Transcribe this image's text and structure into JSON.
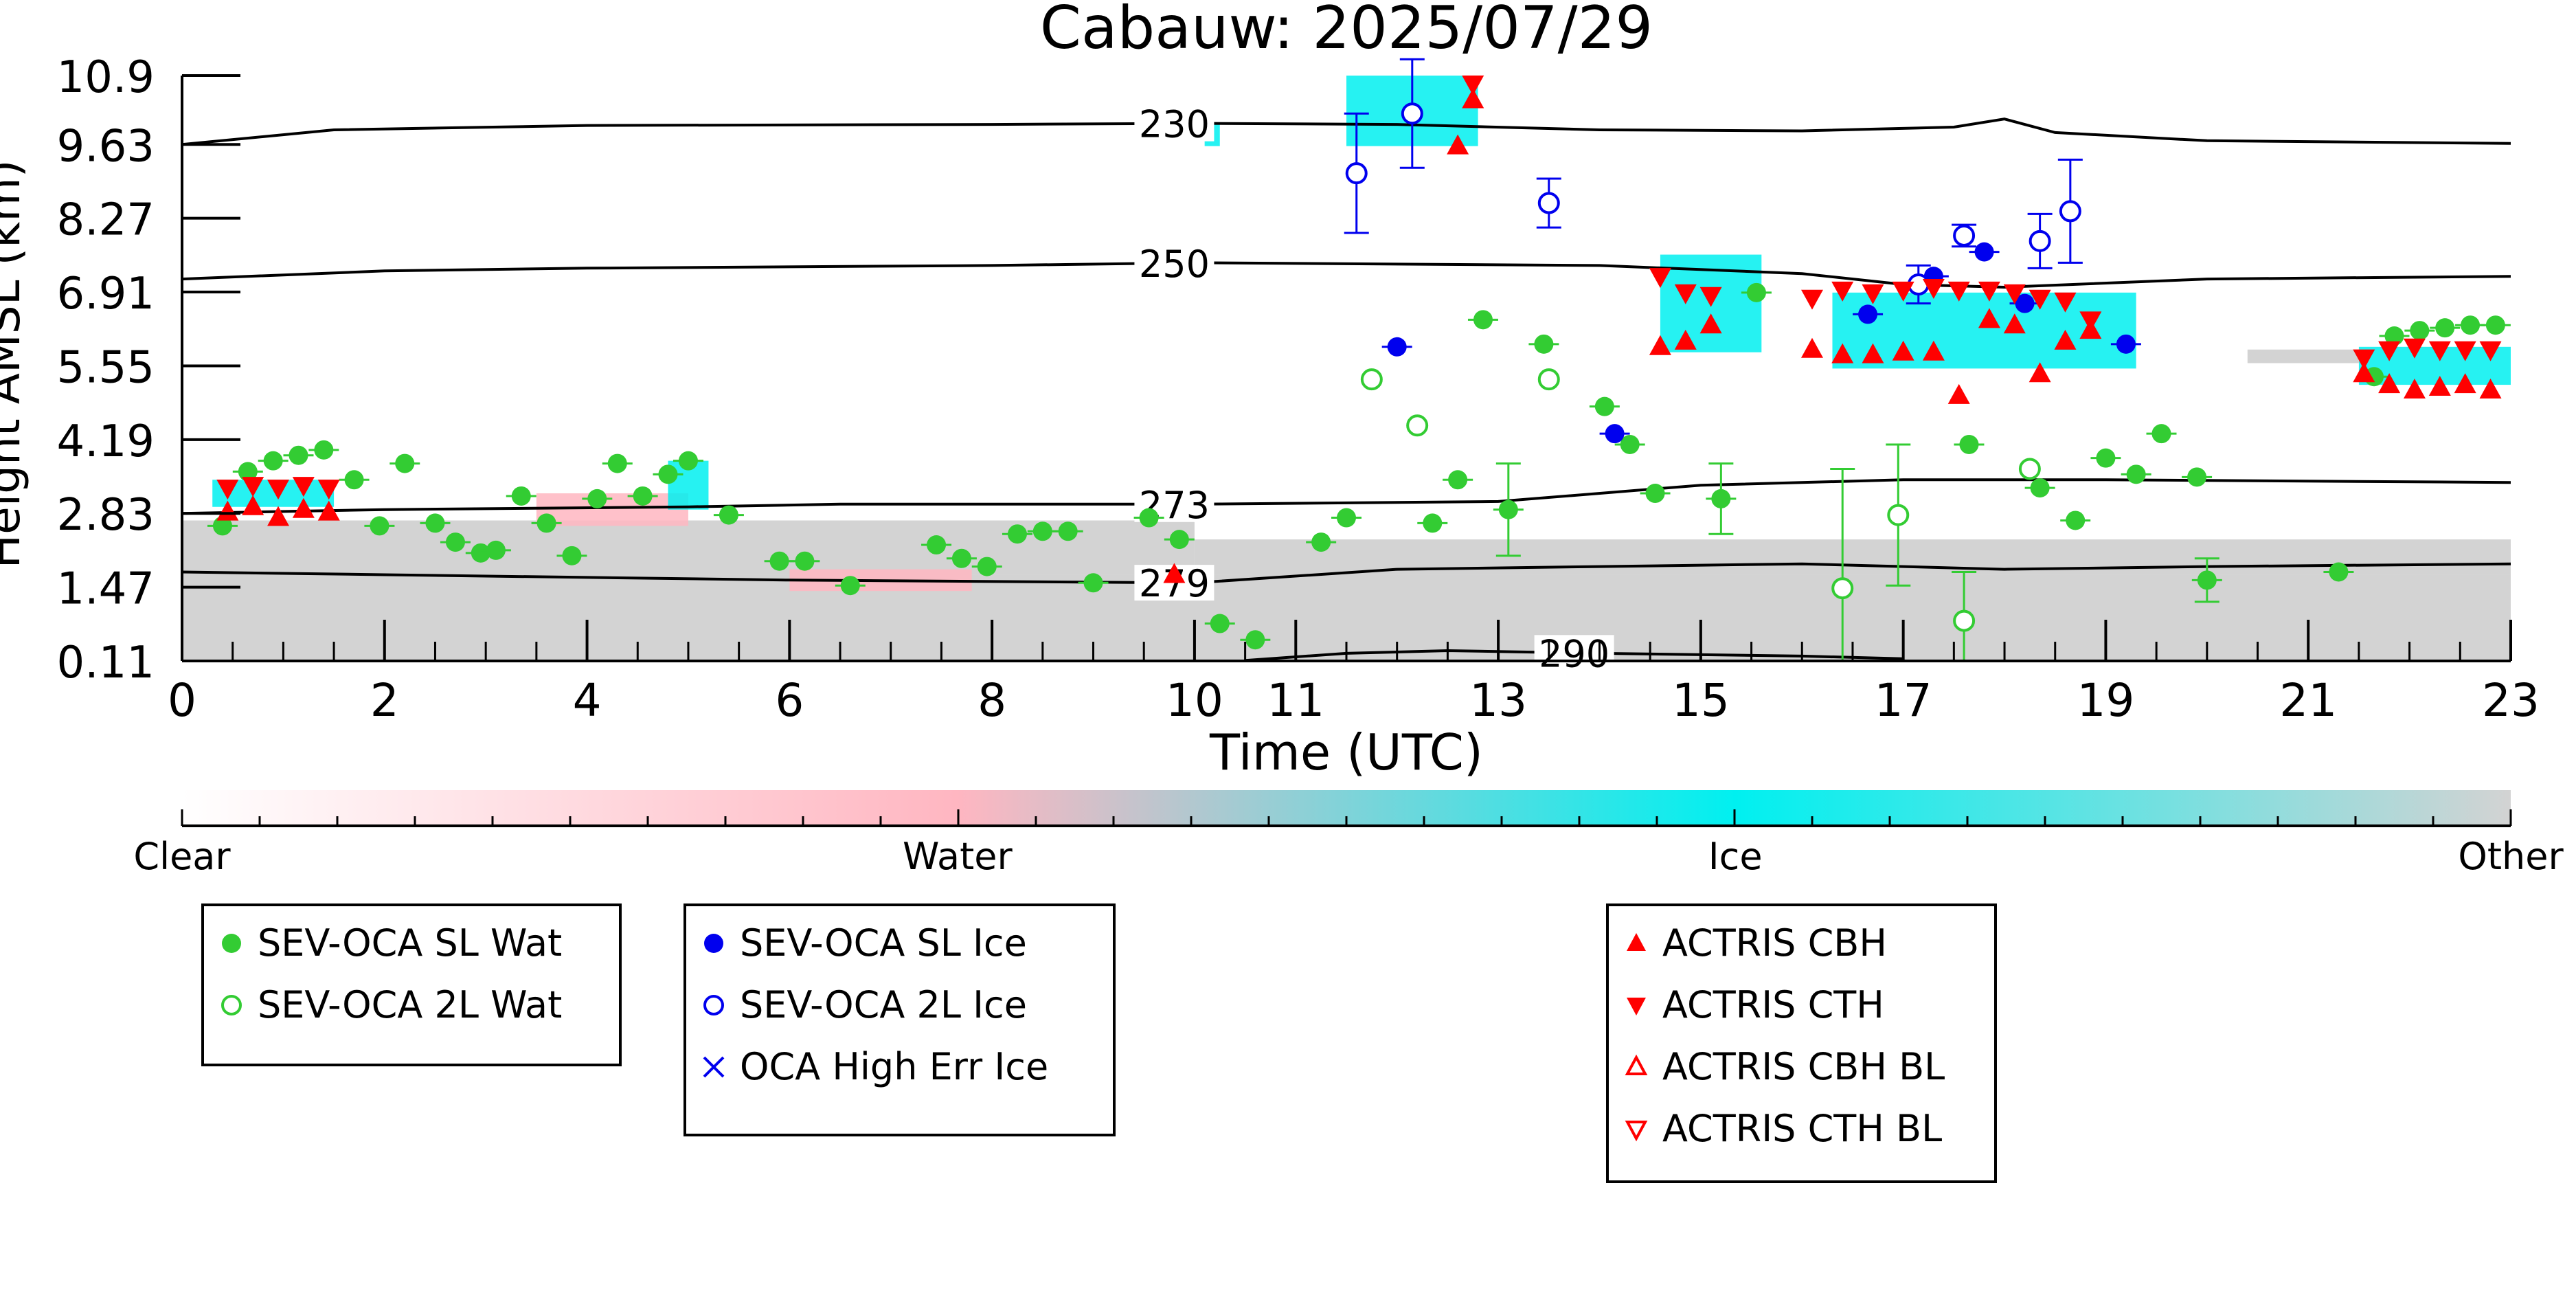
{
  "chart_data": {
    "type": "scatter",
    "title": "Cabauw: 2025/07/29",
    "xlabel": "Time (UTC)",
    "ylabel": "Height AMSL (km)",
    "xlim": [
      0,
      23
    ],
    "ylim": [
      0.11,
      10.9
    ],
    "x_ticks": [
      0,
      2,
      4,
      6,
      8,
      10,
      11,
      13,
      15,
      17,
      19,
      21,
      23
    ],
    "x_tick_labels": [
      "0",
      "2",
      "4",
      "6",
      "8",
      "10",
      "11",
      "13",
      "15",
      "17",
      "19",
      "21",
      "23"
    ],
    "y_ticks": [
      0.11,
      1.47,
      2.83,
      4.19,
      5.55,
      6.91,
      8.27,
      9.63,
      10.9
    ],
    "y_tick_labels": [
      "0.11",
      "1.47",
      "2.83",
      "4.19",
      "5.55",
      "6.91",
      "8.27",
      "9.63",
      "10.9"
    ],
    "grid": false,
    "isotherms": [
      {
        "label": "230",
        "points": [
          [
            0,
            9.63
          ],
          [
            1.5,
            9.9
          ],
          [
            4,
            9.98
          ],
          [
            8,
            10.0
          ],
          [
            10,
            10.02
          ],
          [
            12,
            10.0
          ],
          [
            14,
            9.9
          ],
          [
            16,
            9.88
          ],
          [
            17.5,
            9.95
          ],
          [
            18,
            10.1
          ],
          [
            18.5,
            9.85
          ],
          [
            20,
            9.7
          ],
          [
            23,
            9.65
          ]
        ]
      },
      {
        "label": "250",
        "points": [
          [
            0,
            7.15
          ],
          [
            2,
            7.3
          ],
          [
            4,
            7.35
          ],
          [
            8,
            7.4
          ],
          [
            10,
            7.45
          ],
          [
            14,
            7.4
          ],
          [
            16,
            7.25
          ],
          [
            17,
            7.05
          ],
          [
            18,
            7.0
          ],
          [
            20,
            7.15
          ],
          [
            23,
            7.2
          ]
        ]
      },
      {
        "label": "273",
        "points": [
          [
            0,
            2.83
          ],
          [
            2,
            2.9
          ],
          [
            5,
            2.95
          ],
          [
            6.5,
            3.0
          ],
          [
            10,
            3.0
          ],
          [
            13,
            3.05
          ],
          [
            15,
            3.35
          ],
          [
            17,
            3.45
          ],
          [
            19,
            3.45
          ],
          [
            23,
            3.4
          ]
        ]
      },
      {
        "label": "279",
        "points": [
          [
            0,
            1.75
          ],
          [
            2,
            1.7
          ],
          [
            4,
            1.65
          ],
          [
            6,
            1.6
          ],
          [
            10,
            1.55
          ],
          [
            12,
            1.8
          ],
          [
            14,
            1.85
          ],
          [
            16,
            1.9
          ],
          [
            18,
            1.8
          ],
          [
            20,
            1.85
          ],
          [
            23,
            1.9
          ]
        ]
      },
      {
        "label": "290",
        "points": [
          [
            10.5,
            0.12
          ],
          [
            11.5,
            0.25
          ],
          [
            12.5,
            0.3
          ],
          [
            14,
            0.25
          ],
          [
            16,
            0.2
          ],
          [
            17,
            0.15
          ]
        ]
      }
    ],
    "colorbar": {
      "labels": [
        "Clear",
        "Water",
        "Ice",
        "Other"
      ],
      "colors": [
        "#ffffff",
        "#ffb6c1",
        "#00f0f0",
        "#d3d3d3"
      ]
    },
    "classification_regions": [
      {
        "class": "Other",
        "x0": 0,
        "x1": 23,
        "y0": 0.11,
        "y1": 1.7
      },
      {
        "class": "Other",
        "x0": 0,
        "x1": 10,
        "y0": 1.7,
        "y1": 2.7
      },
      {
        "class": "Other",
        "x0": 10,
        "x1": 23,
        "y0": 1.7,
        "y1": 2.35
      },
      {
        "class": "Water",
        "x0": 3.5,
        "x1": 5.0,
        "y0": 2.6,
        "y1": 3.2
      },
      {
        "class": "Water",
        "x0": 6.0,
        "x1": 7.8,
        "y0": 1.4,
        "y1": 1.8
      },
      {
        "class": "Ice",
        "x0": 0.3,
        "x1": 1.5,
        "y0": 2.95,
        "y1": 3.45
      },
      {
        "class": "Ice",
        "x0": 4.8,
        "x1": 5.2,
        "y0": 2.9,
        "y1": 3.8
      },
      {
        "class": "Ice",
        "x0": 14.6,
        "x1": 15.6,
        "y0": 5.8,
        "y1": 7.6
      },
      {
        "class": "Ice",
        "x0": 16.3,
        "x1": 19.3,
        "y0": 5.5,
        "y1": 6.9
      },
      {
        "class": "Ice",
        "x0": 21.5,
        "x1": 23,
        "y0": 5.2,
        "y1": 5.9
      },
      {
        "class": "Other",
        "x0": 20.4,
        "x1": 21.5,
        "y0": 5.6,
        "y1": 5.85
      },
      {
        "class": "Ice",
        "x0": 11.5,
        "x1": 12.8,
        "y0": 9.6,
        "y1": 10.9
      },
      {
        "class": "Ice",
        "x0": 10.1,
        "x1": 10.25,
        "y0": 9.6,
        "y1": 10.0
      }
    ],
    "series": [
      {
        "name": "SEV-OCA SL Wat",
        "marker": "circle-filled",
        "color": "#33cc33",
        "points": [
          {
            "x": 0.4,
            "y": 2.6,
            "err": 0.0
          },
          {
            "x": 0.65,
            "y": 3.6
          },
          {
            "x": 0.9,
            "y": 3.8
          },
          {
            "x": 1.15,
            "y": 3.9
          },
          {
            "x": 1.4,
            "y": 4.0
          },
          {
            "x": 1.7,
            "y": 3.45
          },
          {
            "x": 1.95,
            "y": 2.6
          },
          {
            "x": 2.2,
            "y": 3.75
          },
          {
            "x": 2.5,
            "y": 2.65
          },
          {
            "x": 2.7,
            "y": 2.3
          },
          {
            "x": 2.95,
            "y": 2.1
          },
          {
            "x": 3.1,
            "y": 2.15
          },
          {
            "x": 3.35,
            "y": 3.15
          },
          {
            "x": 3.6,
            "y": 2.65
          },
          {
            "x": 3.85,
            "y": 2.05
          },
          {
            "x": 4.1,
            "y": 3.1
          },
          {
            "x": 4.3,
            "y": 3.75
          },
          {
            "x": 4.55,
            "y": 3.15
          },
          {
            "x": 4.8,
            "y": 3.55
          },
          {
            "x": 5.0,
            "y": 3.8
          },
          {
            "x": 5.4,
            "y": 2.8
          },
          {
            "x": 5.9,
            "y": 1.95
          },
          {
            "x": 6.15,
            "y": 1.95
          },
          {
            "x": 6.6,
            "y": 1.5
          },
          {
            "x": 7.45,
            "y": 2.25
          },
          {
            "x": 7.7,
            "y": 2.0
          },
          {
            "x": 7.95,
            "y": 1.85
          },
          {
            "x": 8.25,
            "y": 2.45
          },
          {
            "x": 8.5,
            "y": 2.5
          },
          {
            "x": 8.75,
            "y": 2.5
          },
          {
            "x": 9.0,
            "y": 1.55
          },
          {
            "x": 9.55,
            "y": 2.75
          },
          {
            "x": 9.85,
            "y": 2.35
          },
          {
            "x": 10.25,
            "y": 0.8
          },
          {
            "x": 10.6,
            "y": 0.5
          },
          {
            "x": 11.25,
            "y": 2.3
          },
          {
            "x": 11.5,
            "y": 2.75
          },
          {
            "x": 12.35,
            "y": 2.65
          },
          {
            "x": 12.6,
            "y": 3.45
          },
          {
            "x": 12.85,
            "y": 6.4
          },
          {
            "x": 13.1,
            "y": 2.9,
            "err": 0.85
          },
          {
            "x": 13.45,
            "y": 5.95
          },
          {
            "x": 14.05,
            "y": 4.8
          },
          {
            "x": 14.3,
            "y": 4.1
          },
          {
            "x": 14.55,
            "y": 3.2
          },
          {
            "x": 15.2,
            "y": 3.1,
            "err": 0.65
          },
          {
            "x": 15.55,
            "y": 6.9
          },
          {
            "x": 17.65,
            "y": 4.1
          },
          {
            "x": 18.35,
            "y": 3.3
          },
          {
            "x": 18.7,
            "y": 2.7
          },
          {
            "x": 19.0,
            "y": 3.85
          },
          {
            "x": 19.3,
            "y": 3.55
          },
          {
            "x": 19.55,
            "y": 4.3
          },
          {
            "x": 19.9,
            "y": 3.5
          },
          {
            "x": 20.0,
            "y": 1.6,
            "err": 0.4
          },
          {
            "x": 21.65,
            "y": 5.35
          },
          {
            "x": 21.3,
            "y": 1.75
          },
          {
            "x": 21.85,
            "y": 6.1
          },
          {
            "x": 22.1,
            "y": 6.2
          },
          {
            "x": 22.35,
            "y": 6.25
          },
          {
            "x": 22.6,
            "y": 6.3
          },
          {
            "x": 22.85,
            "y": 6.3
          }
        ]
      },
      {
        "name": "SEV-OCA 2L Wat",
        "marker": "circle-open",
        "color": "#33cc33",
        "points": [
          {
            "x": 11.75,
            "y": 5.3
          },
          {
            "x": 12.2,
            "y": 4.45
          },
          {
            "x": 13.5,
            "y": 5.3
          },
          {
            "x": 16.4,
            "y": 1.45,
            "err": 2.2
          },
          {
            "x": 16.95,
            "y": 2.8,
            "err": 1.3
          },
          {
            "x": 17.6,
            "y": 0.85,
            "err": 0.9
          },
          {
            "x": 18.25,
            "y": 3.65
          }
        ]
      },
      {
        "name": "SEV-OCA SL Ice",
        "marker": "circle-filled",
        "color": "#0000ee",
        "points": [
          {
            "x": 12.0,
            "y": 5.9
          },
          {
            "x": 14.15,
            "y": 4.3
          },
          {
            "x": 16.65,
            "y": 6.5
          },
          {
            "x": 17.3,
            "y": 7.2
          },
          {
            "x": 17.8,
            "y": 7.65
          },
          {
            "x": 18.2,
            "y": 6.7
          },
          {
            "x": 19.2,
            "y": 5.95
          }
        ]
      },
      {
        "name": "SEV-OCA 2L Ice",
        "marker": "circle-open",
        "color": "#0000ee",
        "points": [
          {
            "x": 11.6,
            "y": 9.1,
            "err": 1.1
          },
          {
            "x": 12.15,
            "y": 10.2,
            "err": 1.0
          },
          {
            "x": 13.5,
            "y": 8.55,
            "err": 0.45
          },
          {
            "x": 17.15,
            "y": 7.05,
            "err": 0.35
          },
          {
            "x": 17.6,
            "y": 7.95,
            "err": 0.2
          },
          {
            "x": 18.35,
            "y": 7.85,
            "err": 0.5
          },
          {
            "x": 18.65,
            "y": 8.4,
            "err": 0.95
          }
        ]
      },
      {
        "name": "OCA High Err Ice",
        "marker": "x",
        "color": "#0000ee",
        "points": []
      },
      {
        "name": "ACTRIS CBH",
        "marker": "triangle-up-filled",
        "color": "#ff0000",
        "points": [
          {
            "x": 0.45,
            "y": 2.85
          },
          {
            "x": 0.7,
            "y": 2.95
          },
          {
            "x": 0.95,
            "y": 2.75
          },
          {
            "x": 1.2,
            "y": 2.9
          },
          {
            "x": 1.45,
            "y": 2.85
          },
          {
            "x": 9.8,
            "y": 1.7
          },
          {
            "x": 12.6,
            "y": 9.6
          },
          {
            "x": 12.75,
            "y": 10.45
          },
          {
            "x": 14.6,
            "y": 5.9
          },
          {
            "x": 14.85,
            "y": 6.0
          },
          {
            "x": 15.1,
            "y": 6.3
          },
          {
            "x": 16.1,
            "y": 5.85
          },
          {
            "x": 16.4,
            "y": 5.75
          },
          {
            "x": 16.7,
            "y": 5.75
          },
          {
            "x": 17.0,
            "y": 5.8
          },
          {
            "x": 17.3,
            "y": 5.8
          },
          {
            "x": 17.55,
            "y": 5.0
          },
          {
            "x": 17.85,
            "y": 6.4
          },
          {
            "x": 18.1,
            "y": 6.3
          },
          {
            "x": 18.35,
            "y": 5.4
          },
          {
            "x": 18.6,
            "y": 6.0
          },
          {
            "x": 18.85,
            "y": 6.2
          },
          {
            "x": 21.55,
            "y": 5.4
          },
          {
            "x": 21.8,
            "y": 5.2
          },
          {
            "x": 22.05,
            "y": 5.1
          },
          {
            "x": 22.3,
            "y": 5.15
          },
          {
            "x": 22.55,
            "y": 5.2
          },
          {
            "x": 22.8,
            "y": 5.1
          }
        ]
      },
      {
        "name": "ACTRIS CTH",
        "marker": "triangle-down-filled",
        "color": "#ff0000",
        "points": [
          {
            "x": 0.45,
            "y": 3.3
          },
          {
            "x": 0.7,
            "y": 3.35
          },
          {
            "x": 0.95,
            "y": 3.3
          },
          {
            "x": 1.2,
            "y": 3.35
          },
          {
            "x": 1.45,
            "y": 3.3
          },
          {
            "x": 12.75,
            "y": 10.75
          },
          {
            "x": 14.6,
            "y": 7.2
          },
          {
            "x": 14.85,
            "y": 6.9
          },
          {
            "x": 15.1,
            "y": 6.85
          },
          {
            "x": 16.1,
            "y": 6.8
          },
          {
            "x": 16.4,
            "y": 6.95
          },
          {
            "x": 16.7,
            "y": 6.9
          },
          {
            "x": 17.0,
            "y": 6.95
          },
          {
            "x": 17.3,
            "y": 7.0
          },
          {
            "x": 17.55,
            "y": 6.95
          },
          {
            "x": 17.85,
            "y": 6.95
          },
          {
            "x": 18.1,
            "y": 6.9
          },
          {
            "x": 18.35,
            "y": 6.8
          },
          {
            "x": 18.6,
            "y": 6.75
          },
          {
            "x": 18.85,
            "y": 6.4
          },
          {
            "x": 21.55,
            "y": 5.7
          },
          {
            "x": 21.8,
            "y": 5.85
          },
          {
            "x": 22.05,
            "y": 5.9
          },
          {
            "x": 22.3,
            "y": 5.85
          },
          {
            "x": 22.55,
            "y": 5.85
          },
          {
            "x": 22.8,
            "y": 5.85
          }
        ]
      },
      {
        "name": "ACTRIS CBH BL",
        "marker": "triangle-up-open",
        "color": "#ff0000",
        "points": []
      },
      {
        "name": "ACTRIS CTH BL",
        "marker": "triangle-down-open",
        "color": "#ff0000",
        "points": []
      }
    ],
    "legend_groups": [
      [
        "SEV-OCA SL Wat",
        "SEV-OCA 2L Wat"
      ],
      [
        "SEV-OCA SL Ice",
        "SEV-OCA 2L Ice",
        "OCA High Err Ice"
      ],
      [
        "ACTRIS CBH",
        "ACTRIS CTH",
        "ACTRIS CBH BL",
        "ACTRIS CTH BL"
      ]
    ],
    "legend_placement": "bottom"
  }
}
